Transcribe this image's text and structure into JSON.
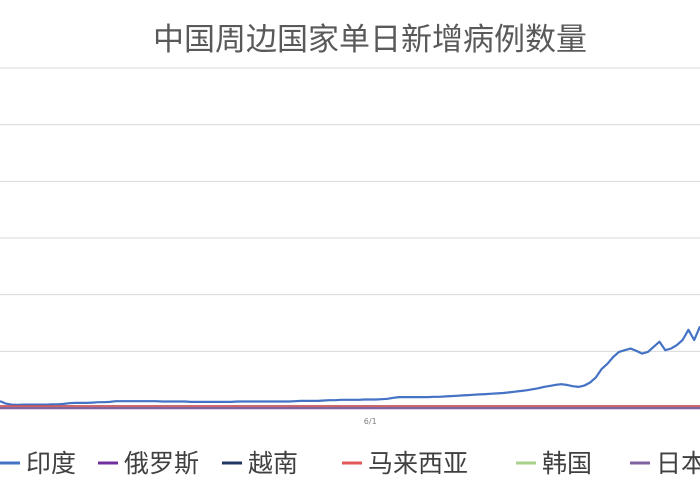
{
  "chart_data": {
    "type": "line",
    "title": "中国周边国家单日新增病例数量",
    "x_tick_labels": [
      {
        "index": 64,
        "label": "6/1"
      }
    ],
    "grid": "horizontal",
    "legend_position": "bottom",
    "x": [
      1,
      2,
      3,
      4,
      5,
      6,
      7,
      8,
      9,
      10,
      11,
      12,
      13,
      14,
      15,
      16,
      17,
      18,
      19,
      20,
      21,
      22,
      23,
      24,
      25,
      26,
      27,
      28,
      29,
      30,
      31,
      32,
      33,
      34,
      35,
      36,
      37,
      38,
      39,
      40,
      41,
      42,
      43,
      44,
      45,
      46,
      47,
      48,
      49,
      50,
      51,
      52,
      53,
      54,
      55,
      56,
      57,
      58,
      59,
      60,
      61,
      62,
      63,
      64,
      65,
      66,
      67,
      68,
      69,
      70,
      71,
      72,
      73,
      74,
      75,
      76,
      77,
      78,
      79,
      80,
      81,
      82,
      83,
      84,
      85,
      86,
      87,
      88,
      89,
      90,
      91,
      92,
      93,
      94,
      95,
      96,
      97,
      98,
      99,
      100,
      101,
      102,
      103,
      104,
      105,
      106,
      107,
      108,
      109,
      110,
      111,
      112,
      113,
      114,
      115,
      116,
      117,
      118,
      119,
      120,
      121,
      122
    ],
    "ylim": [
      0,
      1000
    ],
    "series": [
      {
        "name": "印度",
        "color": "#4472c4",
        "values": [
          20,
          13,
          10,
          9,
          10,
          10,
          10,
          10,
          10,
          11,
          11,
          12,
          14,
          15,
          15,
          15,
          16,
          17,
          17,
          18,
          20,
          20,
          20,
          20,
          20,
          20,
          20,
          20,
          19,
          19,
          19,
          19,
          19,
          18,
          18,
          18,
          18,
          18,
          18,
          18,
          18,
          19,
          19,
          19,
          19,
          19,
          19,
          19,
          19,
          19,
          19,
          20,
          21,
          21,
          21,
          21,
          22,
          23,
          23,
          24,
          24,
          24,
          24,
          25,
          25,
          25,
          26,
          27,
          30,
          32,
          32,
          32,
          32,
          32,
          32,
          33,
          33,
          34,
          35,
          36,
          37,
          38,
          39,
          40,
          41,
          42,
          43,
          44,
          46,
          48,
          50,
          52,
          55,
          58,
          62,
          65,
          68,
          70,
          68,
          64,
          62,
          66,
          75,
          90,
          115,
          130,
          150,
          165,
          170,
          175,
          168,
          160,
          165,
          180,
          195,
          170,
          175,
          185,
          200,
          230,
          200,
          240
        ]
      },
      {
        "name": "俄罗斯",
        "color": "#7030a0",
        "values": [
          0,
          0,
          0,
          0,
          0,
          0,
          0,
          0,
          0,
          0,
          0,
          0,
          0,
          0,
          0,
          0,
          0,
          0,
          0,
          0,
          0,
          0,
          0,
          0,
          0,
          0,
          0,
          0,
          0,
          0,
          0,
          0,
          0,
          0,
          0,
          0,
          0,
          0,
          0,
          0,
          0,
          0,
          0,
          0,
          0,
          0,
          0,
          0,
          0,
          0,
          0,
          0,
          0,
          0,
          0,
          0,
          0,
          0,
          0,
          0,
          0,
          0,
          0,
          0,
          0,
          0,
          0,
          0,
          0,
          0,
          0,
          0,
          0,
          0,
          0,
          0,
          0,
          0,
          0,
          0,
          0,
          0,
          0,
          0,
          0,
          0,
          0,
          0,
          0,
          0,
          0,
          0,
          0,
          0,
          0,
          0,
          0,
          0,
          0,
          0,
          0,
          0,
          0,
          0,
          0,
          0,
          0,
          0,
          0,
          0,
          0,
          0,
          0,
          0,
          0,
          0,
          0,
          0,
          0,
          0,
          0,
          0
        ]
      },
      {
        "name": "越南",
        "color": "#203864",
        "values": [
          5,
          5,
          5,
          5,
          5,
          5,
          5,
          5,
          5,
          5,
          5,
          5,
          5,
          5,
          5,
          5,
          5,
          5,
          5,
          5,
          5,
          5,
          5,
          5,
          5,
          5,
          5,
          5,
          5,
          5,
          5,
          5,
          5,
          5,
          5,
          5,
          5,
          5,
          5,
          5,
          5,
          5,
          5,
          5,
          5,
          5,
          5,
          5,
          5,
          5,
          5,
          5,
          5,
          5,
          5,
          5,
          5,
          5,
          5,
          5,
          5,
          5,
          5,
          5,
          5,
          5,
          5,
          5,
          5,
          5,
          5,
          5,
          5,
          5,
          5,
          5,
          5,
          5,
          5,
          5,
          5,
          5,
          5,
          5,
          5,
          5,
          5,
          5,
          5,
          5,
          5,
          5,
          5,
          5,
          5,
          5,
          5,
          5,
          5,
          5,
          5,
          5,
          5,
          5,
          5,
          5,
          5,
          5,
          5,
          5,
          5,
          5,
          5,
          5,
          5,
          5,
          5,
          5,
          5,
          5,
          5,
          5
        ]
      },
      {
        "name": "马来西亚",
        "color": "#e05a5a",
        "values": [
          5,
          5,
          5,
          5,
          5,
          5,
          5,
          5,
          5,
          5,
          5,
          5,
          5,
          5,
          5,
          5,
          5,
          5,
          5,
          5,
          5,
          5,
          5,
          5,
          5,
          5,
          5,
          5,
          5,
          5,
          5,
          5,
          5,
          5,
          5,
          5,
          5,
          5,
          5,
          5,
          5,
          5,
          5,
          5,
          5,
          5,
          5,
          5,
          5,
          5,
          5,
          5,
          5,
          5,
          5,
          5,
          5,
          5,
          5,
          5,
          5,
          5,
          5,
          5,
          5,
          5,
          5,
          5,
          5,
          5,
          5,
          5,
          5,
          5,
          5,
          5,
          5,
          5,
          5,
          5,
          5,
          5,
          5,
          5,
          5,
          5,
          5,
          5,
          5,
          5,
          5,
          5,
          5,
          5,
          5,
          5,
          5,
          5,
          5,
          5,
          5,
          5,
          5,
          5,
          5,
          5,
          5,
          5,
          5,
          5,
          5,
          5,
          5,
          5,
          5,
          5,
          5,
          5,
          5,
          5,
          5,
          5
        ]
      },
      {
        "name": "韩国",
        "color": "#a9d18e",
        "values": [
          0,
          0,
          0,
          0,
          0,
          0,
          0,
          0,
          0,
          0,
          0,
          0,
          0,
          0,
          0,
          0,
          0,
          0,
          0,
          0,
          0,
          0,
          0,
          0,
          0,
          0,
          0,
          0,
          0,
          0,
          0,
          0,
          0,
          0,
          0,
          0,
          0,
          0,
          0,
          0,
          0,
          0,
          0,
          0,
          0,
          0,
          0,
          0,
          0,
          0,
          0,
          0,
          0,
          0,
          0,
          0,
          0,
          0,
          0,
          0,
          0,
          0,
          0,
          0,
          0,
          0,
          0,
          0,
          0,
          0,
          0,
          0,
          0,
          0,
          0,
          0,
          0,
          0,
          0,
          0,
          0,
          0,
          0,
          0,
          0,
          0,
          0,
          0,
          0,
          0,
          0,
          0,
          0,
          0,
          0,
          0,
          0,
          0,
          0,
          0,
          0,
          0,
          0,
          0,
          0,
          0,
          0,
          0,
          0,
          0,
          0,
          0,
          0,
          0,
          0,
          0,
          0,
          0,
          0,
          0,
          0,
          0
        ]
      },
      {
        "name": "日本",
        "color": "#8064a2",
        "values": [
          0,
          0,
          0,
          0,
          0,
          0,
          0,
          0,
          0,
          0,
          0,
          0,
          0,
          0,
          0,
          0,
          0,
          0,
          0,
          0,
          0,
          0,
          0,
          0,
          0,
          0,
          0,
          0,
          0,
          0,
          0,
          0,
          0,
          0,
          0,
          0,
          0,
          0,
          0,
          0,
          0,
          0,
          0,
          0,
          0,
          0,
          0,
          0,
          0,
          0,
          0,
          0,
          0,
          0,
          0,
          0,
          0,
          0,
          0,
          0,
          0,
          0,
          0,
          0,
          0,
          0,
          0,
          0,
          0,
          0,
          0,
          0,
          0,
          0,
          0,
          0,
          0,
          0,
          0,
          0,
          0,
          0,
          0,
          0,
          0,
          0,
          0,
          0,
          0,
          0,
          0,
          0,
          0,
          0,
          0,
          0,
          0,
          0,
          0,
          0,
          0,
          0,
          0,
          0,
          0,
          0,
          0,
          0,
          0,
          0,
          0,
          0,
          0,
          0,
          0,
          0,
          0,
          0,
          0,
          0,
          0,
          0
        ]
      }
    ]
  }
}
